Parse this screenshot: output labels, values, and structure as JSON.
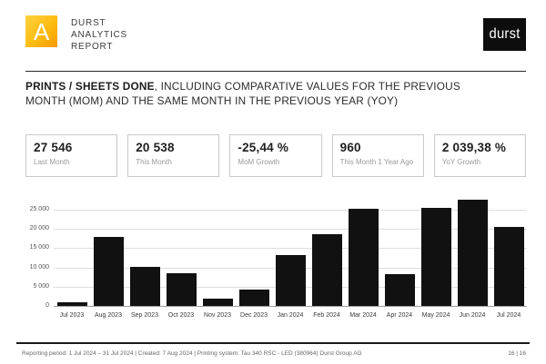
{
  "header": {
    "logo_letter": "A",
    "wordmark": [
      "DURST",
      "ANALYTICS",
      "REPORT"
    ],
    "brand": "durst",
    "accent_color": "#f9a825"
  },
  "title": {
    "bold": "PRINTS / SHEETS DONE",
    "rest": ", INCLUDING COMPARATIVE VALUES FOR THE PREVIOUS MONTH (MOM) AND THE SAME MONTH IN THE PREVIOUS YEAR (YOY)"
  },
  "cards": [
    {
      "value": "27 546",
      "label": "Last Month"
    },
    {
      "value": "20 538",
      "label": "This Month"
    },
    {
      "value": "-25,44 %",
      "label": "MoM Growth"
    },
    {
      "value": "960",
      "label": "This Month 1 Year Ago"
    },
    {
      "value": "2 039,38 %",
      "label": "YoY Growth"
    }
  ],
  "chart_data": {
    "type": "bar",
    "categories": [
      "Jul 2023",
      "Aug 2023",
      "Sep 2023",
      "Oct 2023",
      "Nov 2023",
      "Dec 2023",
      "Jan 2024",
      "Feb 2024",
      "Mar 2024",
      "Apr 2024",
      "May 2024",
      "Jun 2024",
      "Jul 2024"
    ],
    "values": [
      960,
      18000,
      10250,
      8500,
      1800,
      4150,
      13300,
      18600,
      25200,
      8300,
      25400,
      27546,
      20538
    ],
    "title": "",
    "xlabel": "",
    "ylabel": "",
    "ylim": [
      0,
      29000
    ],
    "yticks": [
      0,
      5000,
      10000,
      15000,
      20000,
      25000
    ],
    "ytick_labels": [
      "0",
      "5 000",
      "10 000",
      "15 000",
      "20 000",
      "25 000"
    ],
    "grid": true,
    "legend": "none",
    "bar_color": "#111111"
  },
  "footer": {
    "info": "Reporting period: 1 Jul 2024 – 31 Jul 2024   |   Created: 7 Aug 2024   |   Printing system: Tau 340 RSC - LED (380964) Durst Group AG",
    "page": "16 | 16"
  }
}
